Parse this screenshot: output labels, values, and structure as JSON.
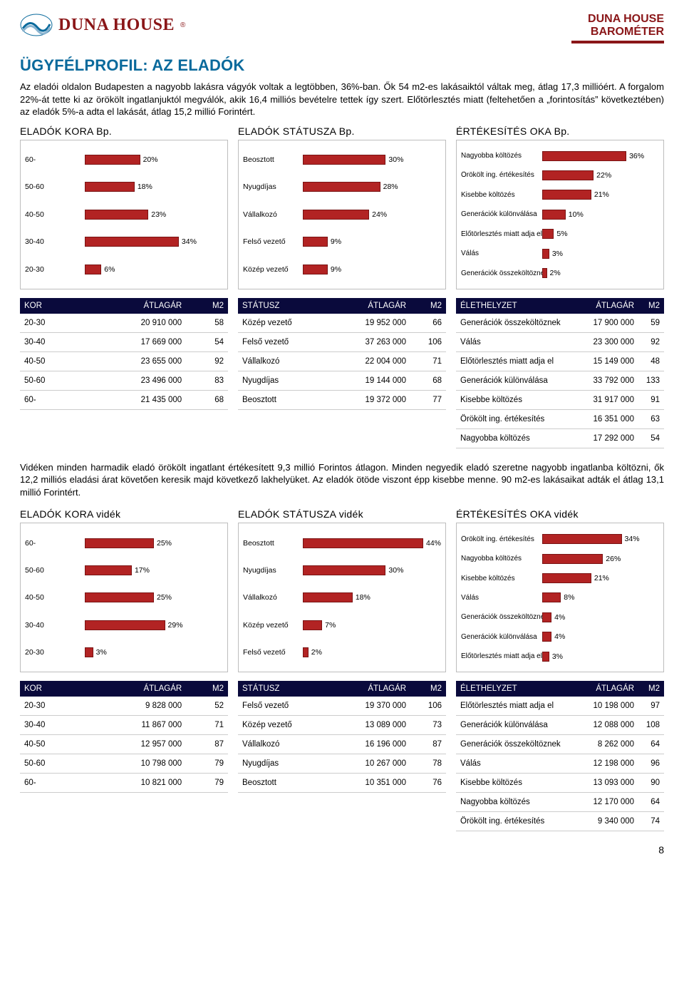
{
  "brand": {
    "name": "DUNA HOUSE",
    "sub1": "DUNA HOUSE",
    "sub2": "BAROMÉTER"
  },
  "page": {
    "title": "ÜGYFÉLPROFIL: AZ ELADÓK",
    "intro": "Az eladói oldalon Budapesten a nagyobb lakásra vágyók voltak a legtöbben, 36%-ban. Ők 54 m2-es lakásaiktól váltak meg, átlag 17,3 millióért. A forgalom 22%-át tette ki az örökölt ingatlanjuktól megválók, akik 16,4 milliós bevételre tettek így szert. Előtörlesztés miatt (feltehetően a „forintosítás” következtében) az eladók 5%-a adta el lakását, átlag 15,2 millió Forintért.",
    "heads_bp": [
      "ELADÓK KORA Bp.",
      "ELADÓK STÁTUSZA Bp.",
      "ÉRTÉKESÍTÉS OKA Bp."
    ],
    "midtext": "Vidéken minden harmadik eladó örökölt ingatlant értékesített 9,3 millió Forintos átlagon. Minden negyedik eladó szeretne nagyobb ingatlanba költözni, ők 12,2 milliós eladási árat követően keresik majd következő lakhelyüket. Az eladók ötöde viszont épp kisebbe menne. 90 m2-es lakásaikat adták el átlag 13,1 millió Forintért.",
    "heads_videk": [
      "ELADÓK KORA vidék",
      "ELADÓK STÁTUSZA vidék",
      "ÉRTÉKESÍTÉS OKA vidék"
    ],
    "pagenum": "8"
  },
  "style": {
    "bar_fill": "#b22323",
    "bar_border": "#7a1414",
    "chart_bg": "#ffffff",
    "chart_border": "#bdbdbd",
    "table_header_bg": "#0a0a3c",
    "accent": "#8a1618",
    "title_color": "#0a6a9c",
    "max_pct": 50
  },
  "charts_bp": {
    "kora": {
      "labels": [
        "60-",
        "50-60",
        "40-50",
        "30-40",
        "20-30"
      ],
      "values": [
        20,
        18,
        23,
        34,
        6
      ]
    },
    "statusz": {
      "labels": [
        "Beosztott",
        "Nyugdíjas",
        "Vállalkozó",
        "Felső vezető",
        "Közép vezető"
      ],
      "values": [
        30,
        28,
        24,
        9,
        9
      ]
    },
    "oka": {
      "labels": [
        "Nagyobba költözés",
        "Örökölt ing. értékesítés",
        "Kisebbe költözés",
        "Generációk különválása",
        "Előtörlesztés miatt adja el",
        "Válás",
        "Generációk összeköltöznek"
      ],
      "values": [
        36,
        22,
        21,
        10,
        5,
        3,
        2
      ]
    }
  },
  "charts_videk": {
    "kora": {
      "labels": [
        "60-",
        "50-60",
        "40-50",
        "30-40",
        "20-30"
      ],
      "values": [
        25,
        17,
        25,
        29,
        3
      ]
    },
    "statusz": {
      "labels": [
        "Beosztott",
        "Nyugdíjas",
        "Vállalkozó",
        "Közép vezető",
        "Felső vezető"
      ],
      "values": [
        44,
        30,
        18,
        7,
        2
      ]
    },
    "oka": {
      "labels": [
        "Örökölt ing. értékesítés",
        "Nagyobba költözés",
        "Kisebbe költözés",
        "Válás",
        "Generációk összeköltöznek",
        "Generációk különválása",
        "Előtörlesztés miatt adja el"
      ],
      "values": [
        34,
        26,
        21,
        8,
        4,
        4,
        3
      ]
    }
  },
  "tables_bp": {
    "kor": {
      "headers": [
        "KOR",
        "ÁTLAGÁR",
        "M2"
      ],
      "rows": [
        [
          "20-30",
          "20 910 000",
          "58"
        ],
        [
          "30-40",
          "17 669 000",
          "54"
        ],
        [
          "40-50",
          "23 655 000",
          "92"
        ],
        [
          "50-60",
          "23 496 000",
          "83"
        ],
        [
          "60-",
          "21 435 000",
          "68"
        ]
      ]
    },
    "statusz": {
      "headers": [
        "STÁTUSZ",
        "ÁTLAGÁR",
        "M2"
      ],
      "rows": [
        [
          "Közép vezető",
          "19 952 000",
          "66"
        ],
        [
          "Felső vezető",
          "37 263 000",
          "106"
        ],
        [
          "Vállalkozó",
          "22 004 000",
          "71"
        ],
        [
          "Nyugdíjas",
          "19 144 000",
          "68"
        ],
        [
          "Beosztott",
          "19 372 000",
          "77"
        ]
      ]
    },
    "elet": {
      "headers": [
        "ÉLETHELYZET",
        "ÁTLAGÁR",
        "M2"
      ],
      "rows": [
        [
          "Generációk összeköltöznek",
          "17 900 000",
          "59"
        ],
        [
          "Válás",
          "23 300 000",
          "92"
        ],
        [
          "Előtörlesztés miatt adja el",
          "15 149 000",
          "48"
        ],
        [
          "Generációk különválása",
          "33 792 000",
          "133"
        ],
        [
          "Kisebbe költözés",
          "31 917 000",
          "91"
        ],
        [
          "Örökölt ing. értékesítés",
          "16 351 000",
          "63"
        ],
        [
          "Nagyobba költözés",
          "17 292 000",
          "54"
        ]
      ]
    }
  },
  "tables_videk": {
    "kor": {
      "headers": [
        "KOR",
        "ÁTLAGÁR",
        "M2"
      ],
      "rows": [
        [
          "20-30",
          "9 828 000",
          "52"
        ],
        [
          "30-40",
          "11 867 000",
          "71"
        ],
        [
          "40-50",
          "12 957 000",
          "87"
        ],
        [
          "50-60",
          "10 798 000",
          "79"
        ],
        [
          "60-",
          "10 821 000",
          "79"
        ]
      ]
    },
    "statusz": {
      "headers": [
        "STÁTUSZ",
        "ÁTLAGÁR",
        "M2"
      ],
      "rows": [
        [
          "Felső vezető",
          "19 370 000",
          "106"
        ],
        [
          "Közép vezető",
          "13 089 000",
          "73"
        ],
        [
          "Vállalkozó",
          "16 196 000",
          "87"
        ],
        [
          "Nyugdíjas",
          "10 267 000",
          "78"
        ],
        [
          "Beosztott",
          "10 351 000",
          "76"
        ]
      ]
    },
    "elet": {
      "headers": [
        "ÉLETHELYZET",
        "ÁTLAGÁR",
        "M2"
      ],
      "rows": [
        [
          "Előtörlesztés miatt adja el",
          "10 198 000",
          "97"
        ],
        [
          "Generációk különválása",
          "12 088 000",
          "108"
        ],
        [
          "Generációk összeköltöznek",
          "8 262 000",
          "64"
        ],
        [
          "Válás",
          "12 198 000",
          "96"
        ],
        [
          "Kisebbe költözés",
          "13 093 000",
          "90"
        ],
        [
          "Nagyobba költözés",
          "12 170 000",
          "64"
        ],
        [
          "Örökölt ing. értékesítés",
          "9 340 000",
          "74"
        ]
      ]
    }
  }
}
